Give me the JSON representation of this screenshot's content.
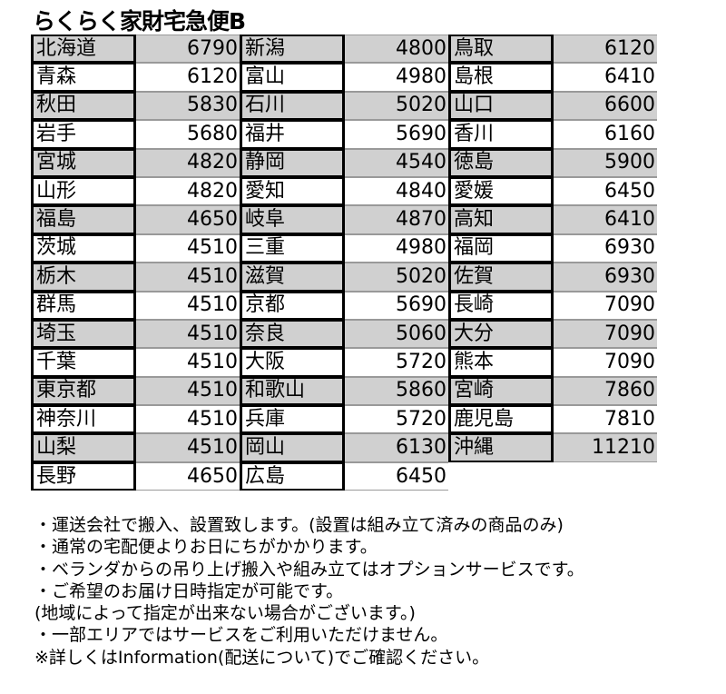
{
  "title": "らくらく家財宅急便B",
  "table": [
    [
      [
        "北海道",
        "6790"
      ],
      [
        "青森",
        "6120"
      ],
      [
        "秋田",
        "5830"
      ],
      [
        "岩手",
        "5680"
      ],
      [
        "宮城",
        "4820"
      ],
      [
        "山形",
        "4820"
      ],
      [
        "福島",
        "4650"
      ],
      [
        "茨城",
        "4510"
      ],
      [
        "栃木",
        "4510"
      ],
      [
        "群馬",
        "4510"
      ],
      [
        "埼玉",
        "4510"
      ],
      [
        "千葉",
        "4510"
      ],
      [
        "東京都",
        "4510"
      ],
      [
        "神奈川",
        "4510"
      ],
      [
        "山梨",
        "4510"
      ],
      [
        "長野",
        "4650"
      ]
    ],
    [
      [
        "新潟",
        "4800"
      ],
      [
        "富山",
        "4980"
      ],
      [
        "石川",
        "5020"
      ],
      [
        "福井",
        "5690"
      ],
      [
        "静岡",
        "4540"
      ],
      [
        "愛知",
        "4840"
      ],
      [
        "岐阜",
        "4870"
      ],
      [
        "三重",
        "4980"
      ],
      [
        "滋賀",
        "5020"
      ],
      [
        "京都",
        "5690"
      ],
      [
        "奈良",
        "5060"
      ],
      [
        "大阪",
        "5720"
      ],
      [
        "和歌山",
        "5860"
      ],
      [
        "兵庫",
        "5720"
      ],
      [
        "岡山",
        "6130"
      ],
      [
        "広島",
        "6450"
      ]
    ],
    [
      [
        "鳥取",
        "6120"
      ],
      [
        "島根",
        "6410"
      ],
      [
        "山口",
        "6600"
      ],
      [
        "香川",
        "6160"
      ],
      [
        "徳島",
        "5900"
      ],
      [
        "愛媛",
        "6450"
      ],
      [
        "高知",
        "6410"
      ],
      [
        "福岡",
        "6930"
      ],
      [
        "佐賀",
        "6930"
      ],
      [
        "長崎",
        "7090"
      ],
      [
        "大分",
        "7090"
      ],
      [
        "熊本",
        "7090"
      ],
      [
        "宮崎",
        "7860"
      ],
      [
        "鹿児島",
        "7810"
      ],
      [
        "沖縄",
        "11210"
      ]
    ]
  ],
  "notes": [
    "・運送会社で搬入、設置致します。(設置は組み立て済みの商品のみ)",
    "・通常の宅配便よりお日にちがかかります。",
    "・ベランダからの吊り上げ搬入や組み立てはオプションサービスです。",
    "・ご希望のお届け日時指定が可能です。",
    "(地域によって指定が出来ない場合がございます。)",
    "・一部エリアではサービスをご利用いただけません。",
    "※詳しくはInformation(配送について)でご確認ください。"
  ],
  "colors": {
    "shaded_row": "#d0d0d0",
    "border": "#000000"
  }
}
